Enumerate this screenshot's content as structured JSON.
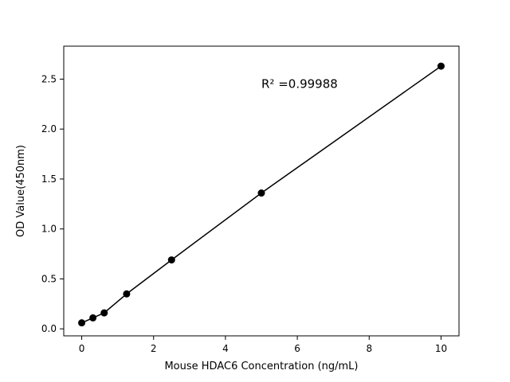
{
  "chart_data": {
    "type": "scatter",
    "title": "",
    "xlabel": "Mouse HDAC6 Concentration (ng/mL)",
    "ylabel": "OD Value(450nm)",
    "x": [
      0,
      0.3125,
      0.625,
      1.25,
      2.5,
      5,
      10
    ],
    "y": [
      0.06,
      0.11,
      0.16,
      0.35,
      0.69,
      1.36,
      2.63
    ],
    "line": true,
    "xlim": [
      -0.5,
      10.5
    ],
    "ylim": [
      -0.07,
      2.83
    ],
    "xticks": [
      0,
      2,
      4,
      6,
      8,
      10
    ],
    "xtick_labels": [
      "0",
      "2",
      "4",
      "6",
      "8",
      "10"
    ],
    "yticks": [
      0.0,
      0.5,
      1.0,
      1.5,
      2.0,
      2.5
    ],
    "ytick_labels": [
      "0.0",
      "0.5",
      "1.0",
      "1.5",
      "2.0",
      "2.5"
    ],
    "annotation": "R² =0.99988",
    "annotation_pos": {
      "x": 5.0,
      "y": 2.41
    },
    "r_squared": "0.99988",
    "grid": false,
    "legend": "none",
    "colors": {
      "marker": "#000000",
      "line": "#000000",
      "frame": "#000000",
      "background": "#ffffff"
    }
  }
}
